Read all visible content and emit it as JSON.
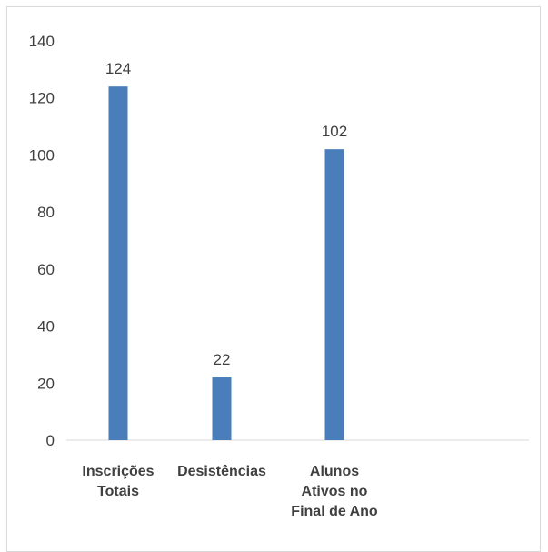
{
  "chart_data": {
    "type": "bar",
    "title": "",
    "xlabel": "",
    "ylabel": "",
    "categories": [
      [
        "Inscrições",
        "Totais"
      ],
      [
        "Desistências"
      ],
      [
        "Alunos",
        "Ativos no",
        "Final de Ano"
      ]
    ],
    "values": [
      124,
      22,
      102
    ],
    "ylim": [
      0,
      140
    ],
    "yticks": [
      0,
      20,
      40,
      60,
      80,
      100,
      120,
      140
    ],
    "bar_color": "#4a7ebb",
    "axis_color": "#d9d9d9",
    "data_labels": true,
    "gridlines": false,
    "legend": "none"
  }
}
